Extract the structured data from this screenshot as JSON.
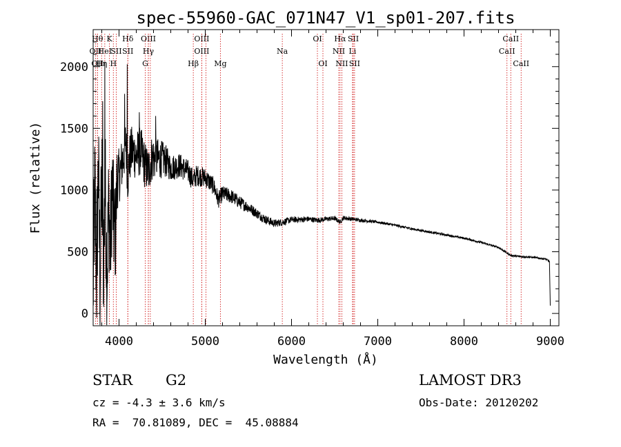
{
  "chart_data": {
    "type": "line",
    "title": "spec-55960-GAC_071N47_V1_sp01-207.fits",
    "xlabel": "Wavelength (Å)",
    "ylabel": "Flux (relative)",
    "xlim": [
      3700,
      9100
    ],
    "ylim": [
      -100,
      2300
    ],
    "x_ticks": [
      4000,
      5000,
      6000,
      7000,
      8000,
      9000
    ],
    "y_ticks": [
      0,
      500,
      1000,
      1500,
      2000
    ],
    "grid": false,
    "color": "#000000",
    "line_marker_color": "#cc0000",
    "spectrum_anchors": [
      [
        3700,
        200
      ],
      [
        3720,
        1000
      ],
      [
        3740,
        300
      ],
      [
        3760,
        1200
      ],
      [
        3780,
        250
      ],
      [
        3800,
        1100
      ],
      [
        3820,
        400
      ],
      [
        3840,
        1050
      ],
      [
        3860,
        300
      ],
      [
        3880,
        900
      ],
      [
        3900,
        500
      ],
      [
        3920,
        1050
      ],
      [
        3940,
        700
      ],
      [
        3960,
        650
      ],
      [
        3980,
        1150
      ],
      [
        4000,
        1100
      ],
      [
        4030,
        1200
      ],
      [
        4060,
        1300
      ],
      [
        4080,
        1400
      ],
      [
        4101,
        1100
      ],
      [
        4120,
        1250
      ],
      [
        4150,
        1320
      ],
      [
        4200,
        1280
      ],
      [
        4250,
        1320
      ],
      [
        4300,
        1200
      ],
      [
        4340,
        1150
      ],
      [
        4380,
        1260
      ],
      [
        4450,
        1250
      ],
      [
        4500,
        1250
      ],
      [
        4550,
        1230
      ],
      [
        4600,
        1180
      ],
      [
        4700,
        1200
      ],
      [
        4800,
        1150
      ],
      [
        4861,
        1080
      ],
      [
        4900,
        1120
      ],
      [
        5000,
        1100
      ],
      [
        5100,
        1030
      ],
      [
        5150,
        920
      ],
      [
        5200,
        970
      ],
      [
        5300,
        950
      ],
      [
        5400,
        900
      ],
      [
        5500,
        860
      ],
      [
        5600,
        810
      ],
      [
        5700,
        760
      ],
      [
        5800,
        730
      ],
      [
        5900,
        740
      ],
      [
        6000,
        760
      ],
      [
        6100,
        760
      ],
      [
        6200,
        765
      ],
      [
        6300,
        755
      ],
      [
        6400,
        765
      ],
      [
        6500,
        770
      ],
      [
        6563,
        740
      ],
      [
        6600,
        775
      ],
      [
        6700,
        765
      ],
      [
        6800,
        755
      ],
      [
        7000,
        740
      ],
      [
        7200,
        715
      ],
      [
        7400,
        685
      ],
      [
        7600,
        660
      ],
      [
        7800,
        635
      ],
      [
        8000,
        610
      ],
      [
        8200,
        575
      ],
      [
        8400,
        535
      ],
      [
        8542,
        470
      ],
      [
        8662,
        460
      ],
      [
        8800,
        455
      ],
      [
        8950,
        440
      ],
      [
        8990,
        420
      ],
      [
        9000,
        60
      ]
    ],
    "noise_profile": [
      [
        3700,
        600
      ],
      [
        3950,
        450
      ],
      [
        4000,
        220
      ],
      [
        4400,
        190
      ],
      [
        4600,
        110
      ],
      [
        5000,
        80
      ],
      [
        5500,
        45
      ],
      [
        6000,
        25
      ],
      [
        6600,
        18
      ],
      [
        7000,
        10
      ],
      [
        9000,
        7
      ]
    ],
    "spikes": [
      {
        "x": 3810,
        "y": 1720
      },
      {
        "x": 3835,
        "y": 2040
      },
      {
        "x": 4065,
        "y": 1780
      },
      {
        "x": 4095,
        "y": 2020
      },
      {
        "x": 4425,
        "y": 1600
      },
      {
        "x": 4235,
        "y": 1630
      }
    ],
    "line_markers": [
      {
        "x": 3727,
        "label": "OII",
        "row": 1
      },
      {
        "x": 3750,
        "label": "Hθ",
        "row": 0
      },
      {
        "x": 3750,
        "label": "OII",
        "row": 2
      },
      {
        "x": 3798,
        "label": "Hη",
        "row": 2
      },
      {
        "x": 3835,
        "label": "HeI",
        "row": 1
      },
      {
        "x": 3889,
        "label": "K",
        "row": 0
      },
      {
        "x": 3934,
        "label": "H",
        "row": 2
      },
      {
        "x": 3968,
        "label": "SII",
        "row": 1
      },
      {
        "x": 4102,
        "label": "Hδ",
        "row": 0
      },
      {
        "x": 4102,
        "label": "SII",
        "row": 1
      },
      {
        "x": 4304,
        "label": "G",
        "row": 2
      },
      {
        "x": 4340,
        "label": "OIII",
        "row": 0
      },
      {
        "x": 4340,
        "label": "Hγ",
        "row": 1
      },
      {
        "x": 4363,
        "label": "",
        "row": 0
      },
      {
        "x": 4861,
        "label": "Hβ",
        "row": 2
      },
      {
        "x": 4959,
        "label": "OIII",
        "row": 0
      },
      {
        "x": 4959,
        "label": "OIII",
        "row": 1
      },
      {
        "x": 5007,
        "label": "",
        "row": 0
      },
      {
        "x": 5175,
        "label": "Mg",
        "row": 2
      },
      {
        "x": 5893,
        "label": "Na",
        "row": 1
      },
      {
        "x": 6300,
        "label": "OI",
        "row": 0
      },
      {
        "x": 6364,
        "label": "OI",
        "row": 2
      },
      {
        "x": 6548,
        "label": "NII",
        "row": 1
      },
      {
        "x": 6563,
        "label": "Hα",
        "row": 0
      },
      {
        "x": 6583,
        "label": "NII",
        "row": 2
      },
      {
        "x": 6707,
        "label": "Li",
        "row": 1
      },
      {
        "x": 6716,
        "label": "SII",
        "row": 0
      },
      {
        "x": 6731,
        "label": "SII",
        "row": 2
      },
      {
        "x": 8498,
        "label": "CaII",
        "row": 1
      },
      {
        "x": 8542,
        "label": "CaII",
        "row": 0
      },
      {
        "x": 8662,
        "label": "CaII",
        "row": 2
      }
    ]
  },
  "info": {
    "object_class": "STAR",
    "subclass": "G2",
    "cz_line": "cz = -4.3 ± 3.6 km/s",
    "coords_line": "RA =  70.81089, DEC =  45.08884",
    "survey": "LAMOST DR3",
    "obs_date_line": "Obs-Date: 20120202"
  }
}
